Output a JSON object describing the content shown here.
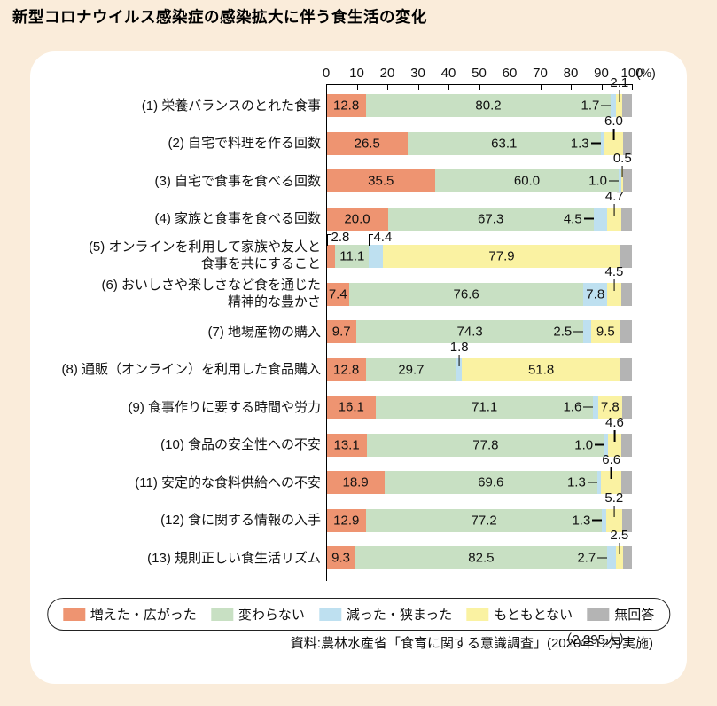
{
  "page": {
    "title": "新型コロナウイルス感染症の感染拡大に伴う食生活の変化",
    "sample_note": "（2,395人）",
    "source": "資料:農林水産省「食育に関する意識調査」(2020年12月実施)"
  },
  "colors": {
    "background": "#faecda",
    "panel": "#ffffff",
    "increased": "#ee9471",
    "unchanged": "#c8e0c3",
    "decreased": "#bee0f0",
    "none_originally": "#faf2a2",
    "no_answer": "#b4b4b4"
  },
  "legend": [
    {
      "key": "increased",
      "label": "増えた・広がった"
    },
    {
      "key": "unchanged",
      "label": "変わらない"
    },
    {
      "key": "decreased",
      "label": "減った・狭まった"
    },
    {
      "key": "none_originally",
      "label": "もともとない"
    },
    {
      "key": "no_answer",
      "label": "無回答"
    }
  ],
  "chart_data": {
    "type": "bar",
    "subtype": "horizontal-stacked-percentage",
    "title": "新型コロナウイルス感染症の感染拡大に伴う食生活の変化",
    "x_axis": {
      "range": [
        0,
        100
      ],
      "ticks": [
        0,
        10,
        20,
        30,
        40,
        50,
        60,
        70,
        80,
        90,
        100
      ],
      "unit": "(%)"
    },
    "legend_position": "bottom",
    "series_keys": [
      "increased",
      "unchanged",
      "decreased",
      "none_originally",
      "no_answer"
    ],
    "series_names": [
      "増えた・広がった",
      "変わらない",
      "減った・狭まった",
      "もともとない",
      "無回答"
    ],
    "note": "no_answer values are unlabeled in the figure and estimated as 100 minus the sum of labeled segments",
    "rows": [
      {
        "label_lines": [
          "(1) 栄養バランスのとれた食事"
        ],
        "values": {
          "increased": 12.8,
          "unchanged": 80.2,
          "decreased": 1.7,
          "none_originally": 2.1,
          "no_answer": 3.2
        },
        "value_labels": {
          "increased": "12.8",
          "unchanged": "80.2",
          "decreased": "1.7",
          "none_originally": "2.1"
        },
        "label_placement": {
          "increased": "inside",
          "unchanged": "inside",
          "decreased": "dash",
          "none_originally": "above"
        }
      },
      {
        "label_lines": [
          "(2) 自宅で料理を作る回数"
        ],
        "values": {
          "increased": 26.5,
          "unchanged": 63.1,
          "decreased": 1.3,
          "none_originally": 6.0,
          "no_answer": 3.1
        },
        "value_labels": {
          "increased": "26.5",
          "unchanged": "63.1",
          "decreased": "1.3",
          "none_originally": "6.0"
        },
        "label_placement": {
          "increased": "inside",
          "unchanged": "inside",
          "decreased": "dash",
          "none_originally": "above"
        }
      },
      {
        "label_lines": [
          "(3) 自宅で食事を食べる回数"
        ],
        "values": {
          "increased": 35.5,
          "unchanged": 60.0,
          "decreased": 1.0,
          "none_originally": 0.5,
          "no_answer": 3.0
        },
        "value_labels": {
          "increased": "35.5",
          "unchanged": "60.0",
          "decreased": "1.0",
          "none_originally": "0.5"
        },
        "label_placement": {
          "increased": "inside",
          "unchanged": "inside",
          "decreased": "dash",
          "none_originally": "above"
        }
      },
      {
        "label_lines": [
          "(4) 家族と食事を食べる回数"
        ],
        "values": {
          "increased": 20.0,
          "unchanged": 67.3,
          "decreased": 4.5,
          "none_originally": 4.7,
          "no_answer": 3.5
        },
        "value_labels": {
          "increased": "20.0",
          "unchanged": "67.3",
          "decreased": "4.5",
          "none_originally": "4.7"
        },
        "label_placement": {
          "increased": "inside",
          "unchanged": "inside",
          "decreased": "dash",
          "none_originally": "above"
        }
      },
      {
        "label_lines": [
          "(5) オンラインを利用して家族や友人と",
          "食事を共にすること"
        ],
        "values": {
          "increased": 2.8,
          "unchanged": 11.1,
          "decreased": 4.4,
          "none_originally": 77.9,
          "no_answer": 3.8
        },
        "value_labels": {
          "increased": "2.8",
          "unchanged": "11.1",
          "decreased": "4.4",
          "none_originally": "77.9"
        },
        "label_placement": {
          "increased": "bracket",
          "unchanged": "inside",
          "decreased": "bracket",
          "none_originally": "inside"
        }
      },
      {
        "label_lines": [
          "(6) おいしさや楽しさなど食を通じた",
          "精神的な豊かさ"
        ],
        "values": {
          "increased": 7.4,
          "unchanged": 76.6,
          "decreased": 7.8,
          "none_originally": 4.5,
          "no_answer": 3.7
        },
        "value_labels": {
          "increased": "7.4",
          "unchanged": "76.6",
          "decreased": "7.8",
          "none_originally": "4.5"
        },
        "label_placement": {
          "increased": "inside",
          "unchanged": "inside",
          "decreased": "inside",
          "none_originally": "above"
        }
      },
      {
        "label_lines": [
          "(7) 地場産物の購入"
        ],
        "values": {
          "increased": 9.7,
          "unchanged": 74.3,
          "decreased": 2.5,
          "none_originally": 9.5,
          "no_answer": 4.0
        },
        "value_labels": {
          "increased": "9.7",
          "unchanged": "74.3",
          "decreased": "2.5",
          "none_originally": "9.5"
        },
        "label_placement": {
          "increased": "inside",
          "unchanged": "inside",
          "decreased": "dash",
          "none_originally": "inside"
        }
      },
      {
        "label_lines": [
          "(8) 通販（オンライン）を利用した食品購入"
        ],
        "values": {
          "increased": 12.8,
          "unchanged": 29.7,
          "decreased": 1.8,
          "none_originally": 51.8,
          "no_answer": 3.9
        },
        "value_labels": {
          "increased": "12.8",
          "unchanged": "29.7",
          "decreased": "1.8",
          "none_originally": "51.8"
        },
        "label_placement": {
          "increased": "inside",
          "unchanged": "inside",
          "decreased": "above",
          "none_originally": "inside"
        }
      },
      {
        "label_lines": [
          "(9) 食事作りに要する時間や労力"
        ],
        "values": {
          "increased": 16.1,
          "unchanged": 71.1,
          "decreased": 1.6,
          "none_originally": 7.8,
          "no_answer": 3.4
        },
        "value_labels": {
          "increased": "16.1",
          "unchanged": "71.1",
          "decreased": "1.6",
          "none_originally": "7.8"
        },
        "label_placement": {
          "increased": "inside",
          "unchanged": "inside",
          "decreased": "dash",
          "none_originally": "inside"
        }
      },
      {
        "label_lines": [
          "(10) 食品の安全性への不安"
        ],
        "values": {
          "increased": 13.1,
          "unchanged": 77.8,
          "decreased": 1.0,
          "none_originally": 4.6,
          "no_answer": 3.5
        },
        "value_labels": {
          "increased": "13.1",
          "unchanged": "77.8",
          "decreased": "1.0",
          "none_originally": "4.6"
        },
        "label_placement": {
          "increased": "inside",
          "unchanged": "inside",
          "decreased": "dash",
          "none_originally": "above"
        }
      },
      {
        "label_lines": [
          "(11) 安定的な食料供給への不安"
        ],
        "values": {
          "increased": 18.9,
          "unchanged": 69.6,
          "decreased": 1.3,
          "none_originally": 6.6,
          "no_answer": 3.6
        },
        "value_labels": {
          "increased": "18.9",
          "unchanged": "69.6",
          "decreased": "1.3",
          "none_originally": "6.6"
        },
        "label_placement": {
          "increased": "inside",
          "unchanged": "inside",
          "decreased": "dash",
          "none_originally": "above"
        }
      },
      {
        "label_lines": [
          "(12) 食に関する情報の入手"
        ],
        "values": {
          "increased": 12.9,
          "unchanged": 77.2,
          "decreased": 1.3,
          "none_originally": 5.2,
          "no_answer": 3.4
        },
        "value_labels": {
          "increased": "12.9",
          "unchanged": "77.2",
          "decreased": "1.3",
          "none_originally": "5.2"
        },
        "label_placement": {
          "increased": "inside",
          "unchanged": "inside",
          "decreased": "dash",
          "none_originally": "above"
        }
      },
      {
        "label_lines": [
          "(13) 規則正しい食生活リズム"
        ],
        "values": {
          "increased": 9.3,
          "unchanged": 82.5,
          "decreased": 2.7,
          "none_originally": 2.5,
          "no_answer": 3.0
        },
        "value_labels": {
          "increased": "9.3",
          "unchanged": "82.5",
          "decreased": "2.7",
          "none_originally": "2.5"
        },
        "label_placement": {
          "increased": "inside",
          "unchanged": "inside",
          "decreased": "dash",
          "none_originally": "above"
        }
      }
    ]
  }
}
